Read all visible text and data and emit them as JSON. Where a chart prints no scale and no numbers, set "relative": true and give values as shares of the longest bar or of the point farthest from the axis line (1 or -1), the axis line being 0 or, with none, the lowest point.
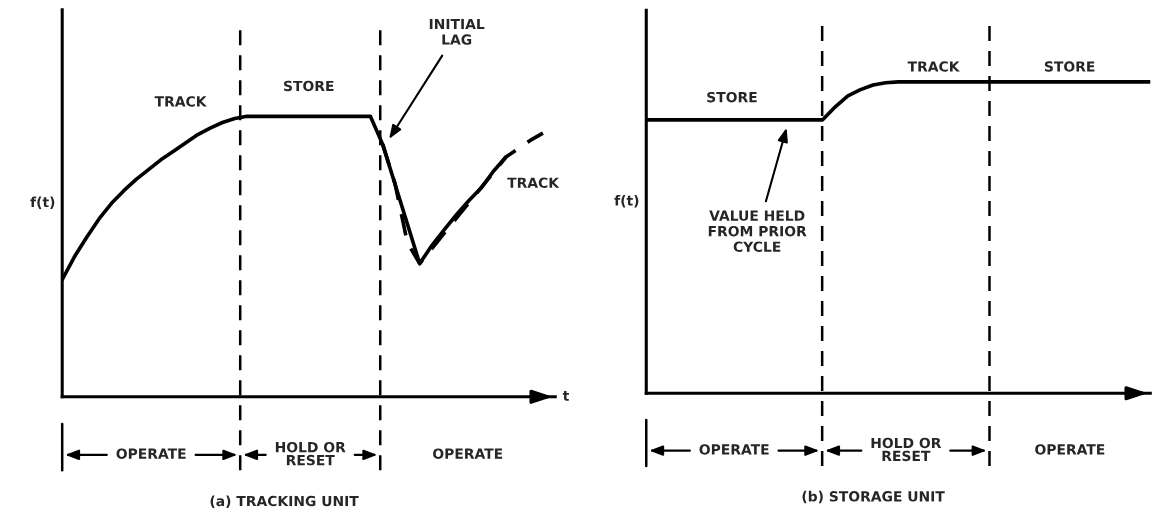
{
  "chart_data": [
    {
      "type": "line",
      "title": "(a) TRACKING UNIT",
      "ylabel": "f(t)",
      "xlabel": "t",
      "relative": true,
      "categories": [
        null,
        null,
        null,
        null,
        null,
        null,
        null,
        null,
        null,
        null,
        null,
        null,
        null,
        null,
        null,
        null,
        null,
        null,
        null,
        null,
        null,
        null,
        null,
        null,
        null,
        null,
        null,
        null,
        null,
        null,
        null,
        null,
        null,
        null,
        null,
        null,
        null,
        null,
        null,
        null,
        null
      ],
      "series": [
        {
          "color": "#000000",
          "line_style": "solid",
          "values": [
            0.418,
            0.5,
            0.57,
            0.635,
            0.69,
            0.735,
            0.775,
            0.81,
            0.845,
            0.875,
            0.905,
            0.935,
            0.958,
            0.978,
            0.992,
            1.0,
            1.0,
            1.0,
            1.0,
            1.0,
            1.0,
            1.0,
            1.0,
            1.0,
            1.0,
            1.0,
            0.9,
            null,
            null,
            0.475,
            0.54,
            0.596,
            0.65,
            0.7,
            0.745,
            0.805,
            0.855,
            null,
            null,
            null,
            null
          ]
        },
        {
          "color": "#000000",
          "line_style": "dashed",
          "values": [
            null,
            null,
            null,
            null,
            null,
            null,
            null,
            null,
            null,
            null,
            null,
            null,
            null,
            null,
            null,
            null,
            null,
            null,
            null,
            null,
            null,
            null,
            null,
            null,
            null,
            null,
            0.9,
            0.76,
            0.55,
            0.475,
            null,
            null,
            null,
            null,
            null,
            null,
            0.855,
            0.885,
            0.915,
            0.94,
            null
          ]
        }
      ],
      "annotations": [
        "TRACK",
        "STORE",
        "INITIAL\nLAG",
        "TRACK",
        "OPERATE",
        "HOLD OR\nRESET",
        "OPERATE"
      ]
    },
    {
      "type": "line",
      "title": "(b) STORAGE UNIT",
      "ylabel": "f(t)",
      "relative": true,
      "categories": [
        null,
        null,
        null,
        null,
        null,
        null,
        null,
        null,
        null,
        null,
        null,
        null,
        null,
        null,
        null,
        null,
        null,
        null,
        null,
        null,
        null,
        null,
        null,
        null,
        null,
        null,
        null,
        null,
        null,
        null,
        null,
        null,
        null,
        null,
        null,
        null,
        null,
        null,
        null,
        null,
        null
      ],
      "series": [
        {
          "color": "#000000",
          "line_style": "solid",
          "values": [
            0.878,
            0.878,
            0.878,
            0.878,
            0.878,
            0.878,
            0.878,
            0.878,
            0.878,
            0.878,
            0.878,
            0.878,
            0.878,
            0.878,
            0.878,
            0.92,
            0.955,
            0.975,
            0.99,
            0.997,
            1.0,
            1.0,
            1.0,
            1.0,
            1.0,
            1.0,
            1.0,
            1.0,
            1.0,
            1.0,
            1.0,
            1.0,
            1.0,
            1.0,
            1.0,
            1.0,
            1.0,
            1.0,
            1.0,
            1.0,
            1.0
          ]
        }
      ],
      "annotations": [
        "STORE",
        "VALUE HELD\nFROM PRIOR\nCYCLE",
        "TRACK",
        "STORE",
        "OPERATE",
        "HOLD OR\nRESET",
        "OPERATE"
      ]
    }
  ]
}
